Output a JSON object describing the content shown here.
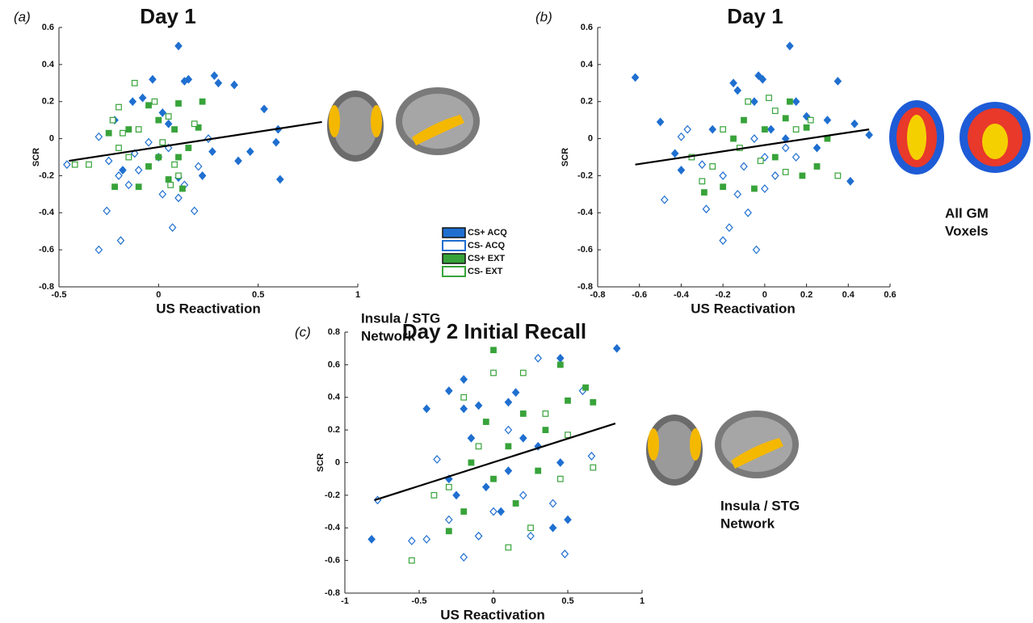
{
  "chart_data": [
    {
      "type": "scatter",
      "panel_label": "(a)",
      "title": "Day 1",
      "x_label": "US Reactivation",
      "y_label": "SCR",
      "annotation": [
        "Insula / STG",
        "Network"
      ],
      "xlim": [
        -0.5,
        1
      ],
      "xticks": [
        -0.5,
        0,
        0.5,
        1
      ],
      "ylim": [
        -0.8,
        0.6
      ],
      "yticks": [
        -0.8,
        -0.6,
        -0.4,
        -0.2,
        0,
        0.2,
        0.4,
        0.6
      ],
      "series": [
        {
          "name": "CS+ ACQ",
          "color": "#1f6fd0",
          "marker": "diamond",
          "filled": true,
          "x": [
            0.1,
            0.28,
            0.3,
            0.38,
            -0.03,
            0.13,
            0.15,
            -0.13,
            -0.08,
            0.53,
            0.6,
            0.59,
            0.61,
            0.4,
            0.46,
            0.22,
            0.1,
            -0.18,
            0.05,
            0.02,
            0.27,
            -0.22
          ],
          "values": [
            0.5,
            0.34,
            0.3,
            0.29,
            0.32,
            0.31,
            0.32,
            0.2,
            0.22,
            0.16,
            0.05,
            -0.02,
            -0.22,
            -0.12,
            -0.07,
            -0.2,
            -0.21,
            -0.17,
            0.08,
            0.14,
            -0.07,
            0.1
          ]
        },
        {
          "name": "CS- ACQ",
          "color": "#1f6fd0",
          "marker": "diamond",
          "filled": false,
          "x": [
            -0.3,
            -0.19,
            -0.26,
            0.07,
            0.18,
            0.1,
            -0.2,
            -0.15,
            -0.1,
            0.02,
            0.13,
            -0.46,
            -0.3,
            -0.25,
            0.0,
            0.05,
            -0.05,
            0.2,
            0.25,
            -0.12
          ],
          "values": [
            -0.6,
            -0.55,
            -0.39,
            -0.48,
            -0.39,
            -0.32,
            -0.2,
            -0.25,
            -0.17,
            -0.3,
            -0.25,
            -0.14,
            0.01,
            -0.12,
            -0.1,
            -0.05,
            -0.02,
            -0.15,
            0.0,
            -0.08
          ]
        },
        {
          "name": "CS+ EXT",
          "color": "#38a33a",
          "marker": "square",
          "filled": true,
          "x": [
            -0.22,
            -0.1,
            0.12,
            -0.05,
            0.1,
            0.0,
            0.08,
            -0.15,
            0.2,
            0.15,
            -0.05,
            0.0,
            0.1,
            0.22,
            -0.25,
            0.05
          ],
          "values": [
            -0.26,
            -0.26,
            -0.27,
            0.18,
            0.19,
            0.1,
            0.05,
            0.05,
            0.06,
            -0.05,
            -0.15,
            -0.1,
            -0.1,
            0.2,
            0.03,
            -0.22
          ]
        },
        {
          "name": "CS- EXT",
          "color": "#38a33a",
          "marker": "square",
          "filled": false,
          "x": [
            -0.12,
            -0.2,
            -0.23,
            -0.35,
            -0.42,
            -0.2,
            0.05,
            -0.1,
            0.02,
            -0.15,
            0.1,
            -0.02,
            0.18,
            0.08,
            -0.18,
            0.06
          ],
          "values": [
            0.3,
            0.17,
            0.1,
            -0.14,
            -0.14,
            -0.05,
            0.12,
            0.05,
            -0.02,
            -0.1,
            -0.2,
            0.2,
            0.08,
            -0.14,
            0.03,
            -0.25
          ]
        }
      ],
      "trend": {
        "color": "#000000",
        "x": [
          -0.45,
          0.82
        ],
        "values": [
          -0.12,
          0.09
        ]
      }
    },
    {
      "type": "scatter",
      "panel_label": "(b)",
      "title": "Day 1",
      "x_label": "US Reactivation",
      "y_label": "SCR",
      "annotation": [
        "All GM",
        "Voxels"
      ],
      "xlim": [
        -0.8,
        0.6
      ],
      "xticks": [
        -0.8,
        -0.6,
        -0.4,
        -0.2,
        0,
        0.2,
        0.4,
        0.6
      ],
      "ylim": [
        -0.8,
        0.6
      ],
      "yticks": [
        -0.8,
        -0.6,
        -0.4,
        -0.2,
        0,
        0.2,
        0.4,
        0.6
      ],
      "series": [
        {
          "color": "#1f6fd0",
          "marker": "diamond",
          "filled": true,
          "x": [
            -0.62,
            -0.5,
            -0.43,
            -0.4,
            0.12,
            -0.03,
            -0.01,
            0.35,
            -0.15,
            -0.13,
            0.15,
            0.2,
            0.3,
            0.43,
            0.5,
            0.41,
            0.1,
            -0.05,
            0.03,
            -0.25,
            0.25
          ],
          "values": [
            0.33,
            0.09,
            -0.08,
            -0.17,
            0.5,
            0.34,
            0.32,
            0.31,
            0.3,
            0.26,
            0.2,
            0.12,
            0.1,
            0.08,
            0.02,
            -0.23,
            0.0,
            0.2,
            0.05,
            0.05,
            -0.05
          ]
        },
        {
          "color": "#1f6fd0",
          "marker": "diamond",
          "filled": false,
          "x": [
            -0.48,
            -0.4,
            -0.37,
            -0.28,
            -0.2,
            -0.17,
            -0.04,
            -0.08,
            -0.13,
            0.0,
            -0.2,
            -0.1,
            0.0,
            0.05,
            -0.3,
            0.1,
            -0.05,
            0.15
          ],
          "values": [
            -0.33,
            0.01,
            0.05,
            -0.38,
            -0.55,
            -0.48,
            -0.6,
            -0.4,
            -0.3,
            -0.27,
            -0.2,
            -0.15,
            -0.1,
            -0.2,
            -0.14,
            -0.05,
            0.0,
            -0.1
          ]
        },
        {
          "color": "#38a33a",
          "marker": "square",
          "filled": true,
          "x": [
            -0.29,
            -0.2,
            -0.05,
            0.1,
            0.2,
            0.18,
            0.0,
            -0.1,
            0.05,
            0.25,
            -0.15,
            0.12,
            0.3
          ],
          "values": [
            -0.29,
            -0.26,
            -0.27,
            0.11,
            0.06,
            -0.2,
            0.05,
            0.1,
            -0.1,
            -0.15,
            0.0,
            0.2,
            0.0
          ]
        },
        {
          "color": "#38a33a",
          "marker": "square",
          "filled": false,
          "x": [
            -0.35,
            -0.3,
            -0.25,
            -0.2,
            0.02,
            0.05,
            -0.08,
            -0.12,
            0.1,
            0.15,
            0.22,
            0.35,
            -0.02
          ],
          "values": [
            -0.1,
            -0.23,
            -0.15,
            0.05,
            0.22,
            0.15,
            0.2,
            -0.05,
            -0.18,
            0.05,
            0.1,
            -0.2,
            -0.12
          ]
        }
      ],
      "trend": {
        "color": "#000000",
        "x": [
          -0.62,
          0.5
        ],
        "values": [
          -0.14,
          0.05
        ]
      }
    },
    {
      "type": "scatter",
      "panel_label": "(c)",
      "title": "Day 2 Initial Recall",
      "x_label": "US Reactivation",
      "y_label": "SCR",
      "annotation": [
        "Insula / STG",
        "Network"
      ],
      "xlim": [
        -1,
        1
      ],
      "xticks": [
        -1,
        -0.5,
        0,
        0.5,
        1
      ],
      "ylim": [
        -0.8,
        0.8
      ],
      "yticks": [
        -0.8,
        -0.6,
        -0.4,
        -0.2,
        0,
        0.2,
        0.4,
        0.6,
        0.8
      ],
      "series": [
        {
          "color": "#1f6fd0",
          "marker": "diamond",
          "filled": true,
          "x": [
            -0.82,
            -0.45,
            -0.3,
            -0.2,
            -0.2,
            -0.1,
            0.1,
            0.15,
            0.45,
            0.83,
            -0.3,
            -0.25,
            -0.05,
            0.05,
            0.1,
            0.2,
            0.3,
            0.4,
            0.5,
            -0.1,
            0.45,
            -0.15
          ],
          "values": [
            -0.47,
            0.33,
            0.44,
            0.51,
            0.33,
            0.35,
            0.37,
            0.43,
            0.64,
            0.7,
            -0.1,
            -0.2,
            -0.15,
            -0.3,
            -0.05,
            0.15,
            0.1,
            -0.4,
            -0.35,
            -0.45,
            0.0,
            0.15
          ]
        },
        {
          "color": "#1f6fd0",
          "marker": "diamond",
          "filled": false,
          "x": [
            -0.78,
            -0.55,
            -0.45,
            -0.38,
            -0.2,
            -0.1,
            0.0,
            0.2,
            0.4,
            0.48,
            0.6,
            0.66,
            -0.3,
            0.1,
            0.3,
            0.25
          ],
          "values": [
            -0.23,
            -0.48,
            -0.47,
            0.02,
            -0.58,
            -0.45,
            -0.3,
            -0.2,
            -0.25,
            -0.56,
            0.44,
            0.04,
            -0.35,
            0.2,
            0.64,
            -0.45
          ]
        },
        {
          "color": "#38a33a",
          "marker": "square",
          "filled": true,
          "x": [
            0.0,
            0.45,
            0.5,
            0.67,
            -0.3,
            -0.15,
            0.0,
            0.1,
            0.2,
            0.3,
            -0.05,
            0.35,
            -0.2,
            0.15,
            0.62
          ],
          "values": [
            0.69,
            0.6,
            0.38,
            0.37,
            -0.42,
            0.0,
            -0.1,
            0.1,
            0.3,
            -0.05,
            0.25,
            0.2,
            -0.3,
            -0.25,
            0.46
          ]
        },
        {
          "color": "#38a33a",
          "marker": "square",
          "filled": false,
          "x": [
            -0.55,
            -0.4,
            -0.3,
            -0.1,
            0.0,
            0.2,
            0.25,
            0.35,
            0.5,
            0.67,
            -0.2,
            0.1,
            0.45
          ],
          "values": [
            -0.6,
            -0.2,
            -0.15,
            0.1,
            0.55,
            0.55,
            -0.4,
            0.3,
            0.17,
            -0.03,
            0.4,
            -0.52,
            -0.1
          ]
        }
      ],
      "trend": {
        "color": "#000000",
        "x": [
          -0.8,
          0.82
        ],
        "values": [
          -0.23,
          0.24
        ]
      }
    }
  ]
}
